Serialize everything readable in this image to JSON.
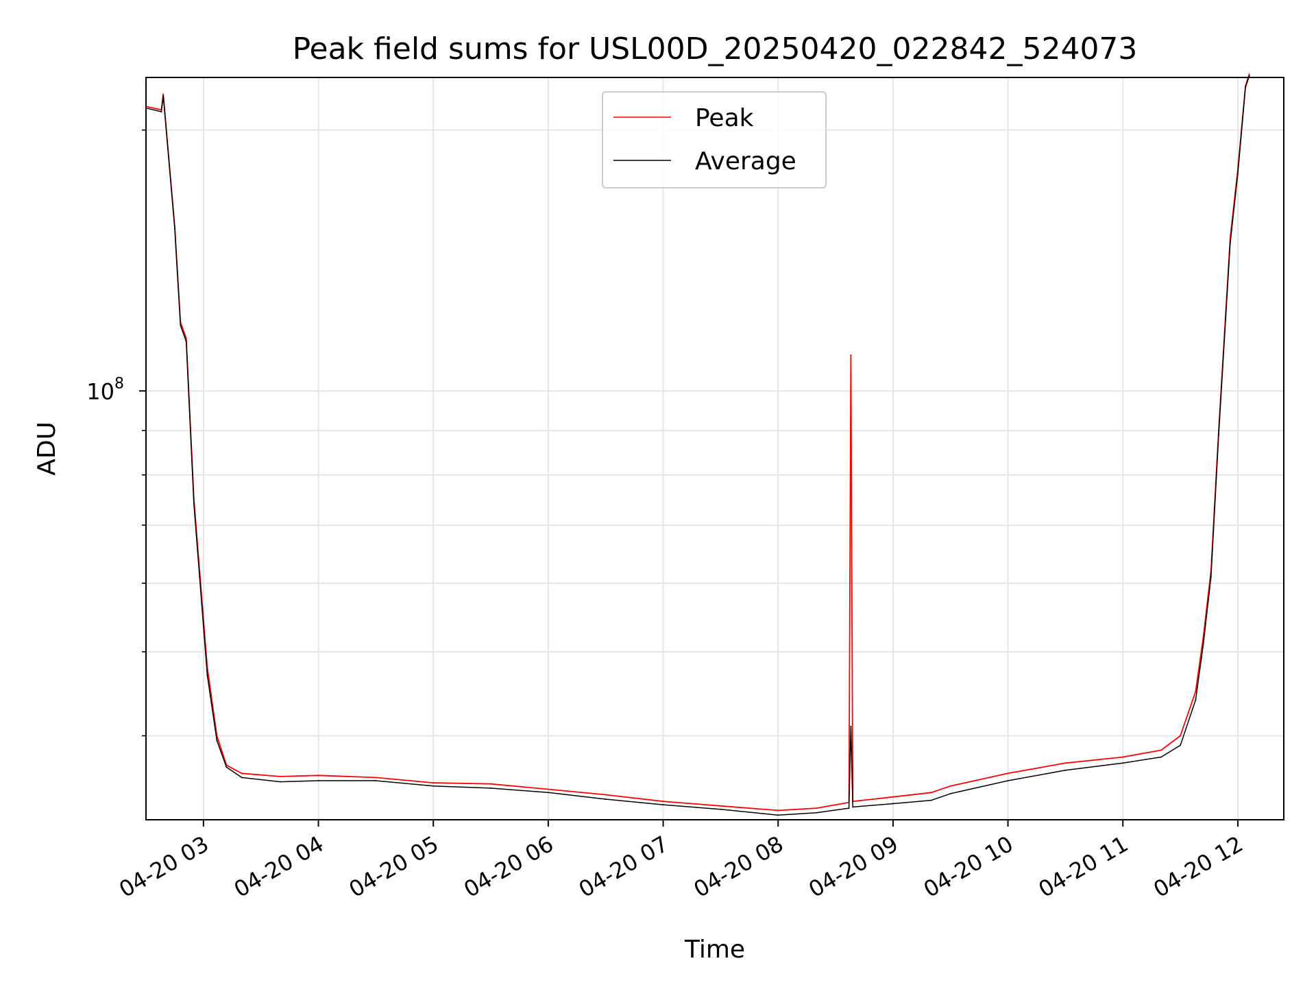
{
  "chart_data": {
    "type": "line",
    "title": "Peak field sums for USL00D_20250420_022842_524073",
    "xlabel": "Time",
    "ylabel": "ADU",
    "yscale": "log",
    "grid": true,
    "legend_placement": "top-center",
    "x_range": [
      "2025-04-20 02:30",
      "2025-04-20 12:24"
    ],
    "y_range": [
      32000000,
      230000000
    ],
    "x_ticks": [
      {
        "t": "2025-04-20 03:00",
        "label": "04-20 03"
      },
      {
        "t": "2025-04-20 04:00",
        "label": "04-20 04"
      },
      {
        "t": "2025-04-20 05:00",
        "label": "04-20 05"
      },
      {
        "t": "2025-04-20 06:00",
        "label": "04-20 06"
      },
      {
        "t": "2025-04-20 07:00",
        "label": "04-20 07"
      },
      {
        "t": "2025-04-20 08:00",
        "label": "04-20 08"
      },
      {
        "t": "2025-04-20 09:00",
        "label": "04-20 09"
      },
      {
        "t": "2025-04-20 10:00",
        "label": "04-20 10"
      },
      {
        "t": "2025-04-20 11:00",
        "label": "04-20 11"
      },
      {
        "t": "2025-04-20 12:00",
        "label": "04-20 12"
      }
    ],
    "y_major_ticks": [
      {
        "value": 100000000,
        "base": "10",
        "exp": "8"
      }
    ],
    "y_minor_ticks": [
      40000000,
      50000000,
      60000000,
      70000000,
      80000000,
      90000000,
      200000000
    ],
    "series": [
      {
        "name": "Peak",
        "color": "#ff0000",
        "points": [
          [
            "2025-04-20 02:30",
            213000000
          ],
          [
            "2025-04-20 02:38",
            211000000
          ],
          [
            "2025-04-20 02:39",
            220000000
          ],
          [
            "2025-04-20 02:45",
            155000000
          ],
          [
            "2025-04-20 02:48",
            120000000
          ],
          [
            "2025-04-20 02:51",
            115000000
          ],
          [
            "2025-04-20 02:55",
            75000000
          ],
          [
            "2025-04-20 02:58",
            62000000
          ],
          [
            "2025-04-20 03:02",
            48000000
          ],
          [
            "2025-04-20 03:07",
            40000000
          ],
          [
            "2025-04-20 03:12",
            37000000
          ],
          [
            "2025-04-20 03:20",
            36200000
          ],
          [
            "2025-04-20 03:40",
            35900000
          ],
          [
            "2025-04-20 04:00",
            36000000
          ],
          [
            "2025-04-20 04:30",
            35800000
          ],
          [
            "2025-04-20 05:00",
            35300000
          ],
          [
            "2025-04-20 05:30",
            35200000
          ],
          [
            "2025-04-20 06:00",
            34700000
          ],
          [
            "2025-04-20 06:30",
            34200000
          ],
          [
            "2025-04-20 07:00",
            33600000
          ],
          [
            "2025-04-20 07:30",
            33200000
          ],
          [
            "2025-04-20 08:00",
            32800000
          ],
          [
            "2025-04-20 08:20",
            33000000
          ],
          [
            "2025-04-20 08:37",
            33500000
          ],
          [
            "2025-04-20 08:38",
            110000000
          ],
          [
            "2025-04-20 08:39",
            33600000
          ],
          [
            "2025-04-20 09:00",
            34000000
          ],
          [
            "2025-04-20 09:20",
            34400000
          ],
          [
            "2025-04-20 09:30",
            35000000
          ],
          [
            "2025-04-20 10:00",
            36200000
          ],
          [
            "2025-04-20 10:30",
            37200000
          ],
          [
            "2025-04-20 11:00",
            37800000
          ],
          [
            "2025-04-20 11:20",
            38500000
          ],
          [
            "2025-04-20 11:30",
            40000000
          ],
          [
            "2025-04-20 11:38",
            45000000
          ],
          [
            "2025-04-20 11:42",
            52000000
          ],
          [
            "2025-04-20 11:46",
            62000000
          ],
          [
            "2025-04-20 11:50",
            90000000
          ],
          [
            "2025-04-20 11:56",
            150000000
          ],
          [
            "2025-04-20 12:00",
            180000000
          ],
          [
            "2025-04-20 12:04",
            225000000
          ],
          [
            "2025-04-20 12:06",
            232000000
          ]
        ]
      },
      {
        "name": "Average",
        "color": "#000000",
        "points": [
          [
            "2025-04-20 02:30",
            212000000
          ],
          [
            "2025-04-20 02:38",
            210000000
          ],
          [
            "2025-04-20 02:39",
            219000000
          ],
          [
            "2025-04-20 02:45",
            154000000
          ],
          [
            "2025-04-20 02:48",
            119000000
          ],
          [
            "2025-04-20 02:51",
            114000000
          ],
          [
            "2025-04-20 02:55",
            74000000
          ],
          [
            "2025-04-20 02:58",
            61000000
          ],
          [
            "2025-04-20 03:02",
            47000000
          ],
          [
            "2025-04-20 03:07",
            39500000
          ],
          [
            "2025-04-20 03:12",
            36800000
          ],
          [
            "2025-04-20 03:20",
            35800000
          ],
          [
            "2025-04-20 03:40",
            35400000
          ],
          [
            "2025-04-20 04:00",
            35500000
          ],
          [
            "2025-04-20 04:30",
            35500000
          ],
          [
            "2025-04-20 05:00",
            35000000
          ],
          [
            "2025-04-20 05:30",
            34800000
          ],
          [
            "2025-04-20 06:00",
            34400000
          ],
          [
            "2025-04-20 06:30",
            33800000
          ],
          [
            "2025-04-20 07:00",
            33300000
          ],
          [
            "2025-04-20 07:30",
            32900000
          ],
          [
            "2025-04-20 08:00",
            32400000
          ],
          [
            "2025-04-20 08:20",
            32600000
          ],
          [
            "2025-04-20 08:37",
            33000000
          ],
          [
            "2025-04-20 08:38",
            41000000
          ],
          [
            "2025-04-20 08:39",
            33100000
          ],
          [
            "2025-04-20 09:00",
            33400000
          ],
          [
            "2025-04-20 09:20",
            33700000
          ],
          [
            "2025-04-20 09:30",
            34300000
          ],
          [
            "2025-04-20 10:00",
            35500000
          ],
          [
            "2025-04-20 10:30",
            36500000
          ],
          [
            "2025-04-20 11:00",
            37200000
          ],
          [
            "2025-04-20 11:20",
            37800000
          ],
          [
            "2025-04-20 11:30",
            39000000
          ],
          [
            "2025-04-20 11:38",
            44000000
          ],
          [
            "2025-04-20 11:42",
            51000000
          ],
          [
            "2025-04-20 11:46",
            61000000
          ],
          [
            "2025-04-20 11:50",
            89000000
          ],
          [
            "2025-04-20 11:56",
            148000000
          ],
          [
            "2025-04-20 12:00",
            178000000
          ],
          [
            "2025-04-20 12:04",
            224000000
          ],
          [
            "2025-04-20 12:06",
            231000000
          ]
        ]
      }
    ]
  }
}
